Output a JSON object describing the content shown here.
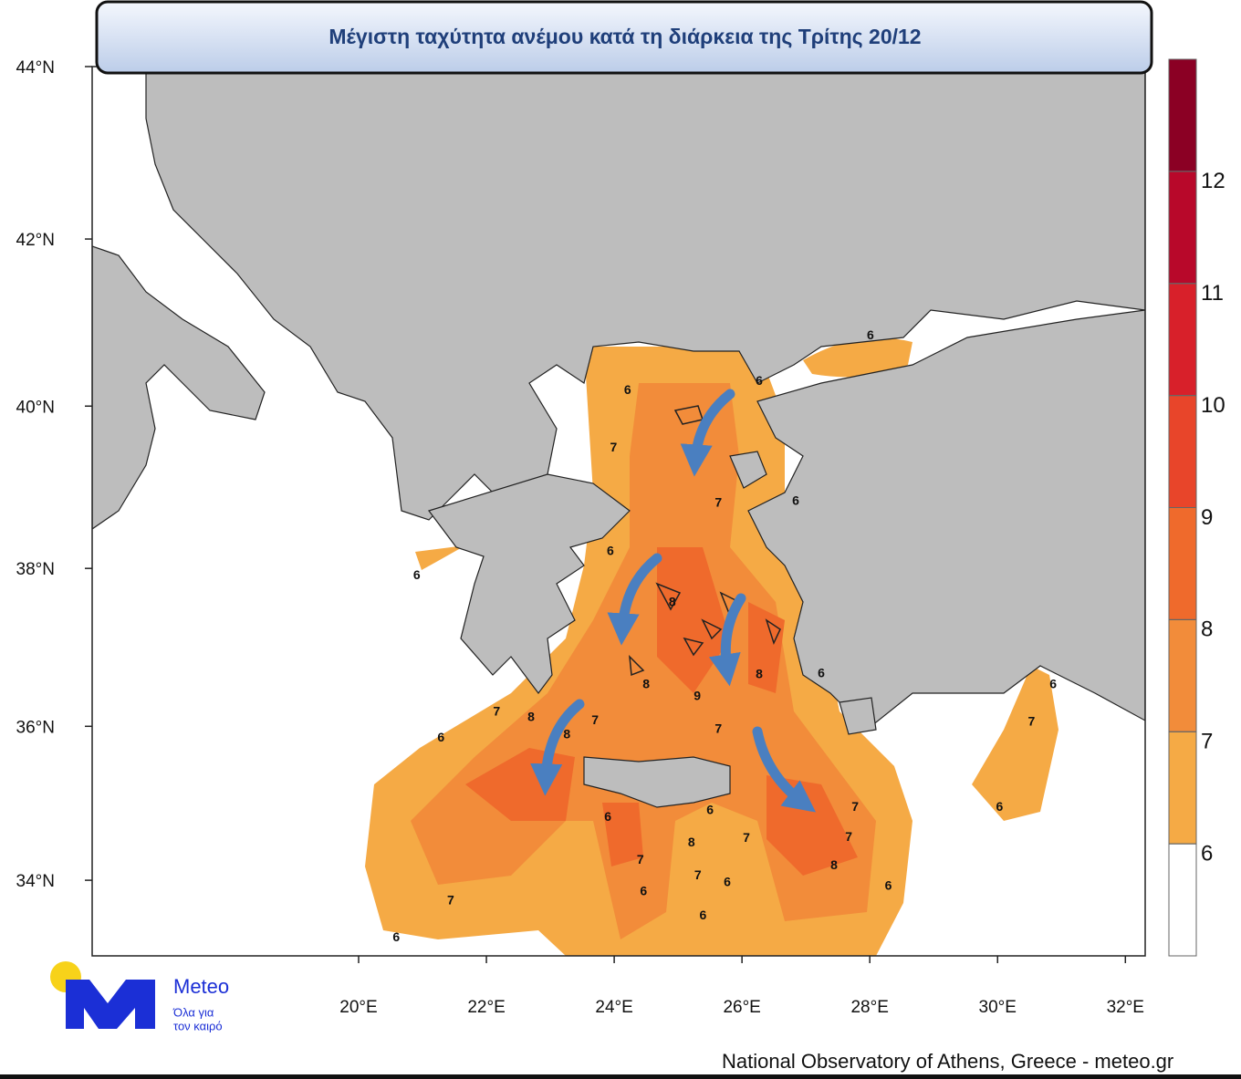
{
  "title": "Μέγιστη ταχύτητα ανέμου κατά τη διάρκεια της Τρίτης 20/12",
  "map": {
    "lonlim": [
      15.83,
      32.31
    ],
    "latlim": [
      33,
      44
    ],
    "lat_ticks": [
      {
        "value": 44,
        "label": "44°N"
      },
      {
        "value": 42,
        "label": "42°N"
      },
      {
        "value": 40,
        "label": "40°N"
      },
      {
        "value": 38,
        "label": "38°N"
      },
      {
        "value": 36,
        "label": "36°N"
      },
      {
        "value": 34,
        "label": "34°N"
      }
    ],
    "lon_ticks": [
      {
        "value": 20,
        "label": "20°E"
      },
      {
        "value": 22,
        "label": "22°E"
      },
      {
        "value": 24,
        "label": "24°E"
      },
      {
        "value": 26,
        "label": "26°E"
      },
      {
        "value": 28,
        "label": "28°E"
      },
      {
        "value": 30,
        "label": "30°E"
      },
      {
        "value": 32,
        "label": "32°E"
      }
    ],
    "contour_labels": [
      {
        "value": 6,
        "lon": 28.01,
        "lat": 40.85
      },
      {
        "value": 6,
        "lon": 26.27,
        "lat": 40.3
      },
      {
        "value": 6,
        "lon": 24.21,
        "lat": 40.19
      },
      {
        "value": 7,
        "lon": 23.99,
        "lat": 39.49
      },
      {
        "value": 7,
        "lon": 25.63,
        "lat": 38.81
      },
      {
        "value": 6,
        "lon": 26.84,
        "lat": 38.83
      },
      {
        "value": 6,
        "lon": 23.94,
        "lat": 38.21
      },
      {
        "value": 6,
        "lon": 20.91,
        "lat": 37.91
      },
      {
        "value": 8,
        "lon": 24.91,
        "lat": 37.57
      },
      {
        "value": 8,
        "lon": 26.27,
        "lat": 36.66
      },
      {
        "value": 6,
        "lon": 27.24,
        "lat": 36.67
      },
      {
        "value": 8,
        "lon": 24.5,
        "lat": 36.53
      },
      {
        "value": 9,
        "lon": 25.3,
        "lat": 36.38
      },
      {
        "value": 7,
        "lon": 22.16,
        "lat": 36.18
      },
      {
        "value": 8,
        "lon": 22.7,
        "lat": 36.11
      },
      {
        "value": 8,
        "lon": 23.26,
        "lat": 35.89
      },
      {
        "value": 7,
        "lon": 23.7,
        "lat": 36.07
      },
      {
        "value": 7,
        "lon": 25.63,
        "lat": 35.96
      },
      {
        "value": 7,
        "lon": 30.53,
        "lat": 36.05
      },
      {
        "value": 6,
        "lon": 30.87,
        "lat": 36.53
      },
      {
        "value": 6,
        "lon": 21.29,
        "lat": 35.85
      },
      {
        "value": 6,
        "lon": 23.9,
        "lat": 34.82
      },
      {
        "value": 6,
        "lon": 25.5,
        "lat": 34.91
      },
      {
        "value": 7,
        "lon": 27.77,
        "lat": 34.95
      },
      {
        "value": 7,
        "lon": 27.67,
        "lat": 34.56
      },
      {
        "value": 8,
        "lon": 27.44,
        "lat": 34.19
      },
      {
        "value": 8,
        "lon": 25.21,
        "lat": 34.49
      },
      {
        "value": 7,
        "lon": 26.07,
        "lat": 34.55
      },
      {
        "value": 7,
        "lon": 24.41,
        "lat": 34.26
      },
      {
        "value": 7,
        "lon": 25.31,
        "lat": 34.06
      },
      {
        "value": 6,
        "lon": 25.77,
        "lat": 33.97
      },
      {
        "value": 6,
        "lon": 24.46,
        "lat": 33.85
      },
      {
        "value": 6,
        "lon": 25.39,
        "lat": 33.53
      },
      {
        "value": 6,
        "lon": 28.29,
        "lat": 33.92
      },
      {
        "value": 7,
        "lon": 21.44,
        "lat": 33.73
      },
      {
        "value": 6,
        "lon": 20.59,
        "lat": 33.24
      },
      {
        "value": 6,
        "lon": 30.03,
        "lat": 34.95
      }
    ]
  },
  "colorbar": {
    "range": [
      5,
      13
    ],
    "ticks": [
      6,
      7,
      8,
      9,
      10,
      11,
      12
    ],
    "colors": [
      "#ffffff",
      "#f5aa45",
      "#f28c3a",
      "#ef6a2c",
      "#e8452a",
      "#d8202a",
      "#b8082a",
      "#8b0024"
    ]
  },
  "logo": {
    "name": "Meteo",
    "tagline": [
      "Όλα για",
      "τον καιρό"
    ]
  },
  "footer": "National Observatory of Athens, Greece - meteo.gr"
}
